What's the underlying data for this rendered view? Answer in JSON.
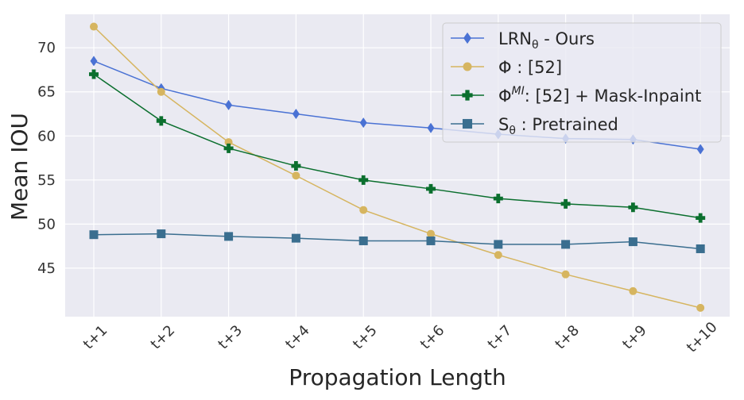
{
  "chart_data": {
    "type": "line",
    "xlabel": "Propagation Length",
    "ylabel": "Mean IOU",
    "categories": [
      "t+1",
      "t+2",
      "t+3",
      "t+4",
      "t+5",
      "t+6",
      "t+7",
      "t+8",
      "t+9",
      "t+10"
    ],
    "yticks": [
      45,
      50,
      55,
      60,
      65,
      70
    ],
    "ylim": [
      39.5,
      73.8
    ],
    "grid": true,
    "legend_position": "top-right",
    "series": [
      {
        "name": "LRN",
        "name_sub": "θ",
        "name_rest": " - Ours",
        "color": "#4a72d4",
        "marker": "diamond",
        "values": [
          68.5,
          65.4,
          63.5,
          62.5,
          61.5,
          60.9,
          60.2,
          59.7,
          59.6,
          58.5
        ]
      },
      {
        "name": "Φ : [52]",
        "color": "#d6b560",
        "marker": "circle",
        "values": [
          72.4,
          65.0,
          59.3,
          55.5,
          51.6,
          48.9,
          46.5,
          44.3,
          42.4,
          40.5
        ]
      },
      {
        "name": "Φ",
        "name_sup": "MI",
        "name_rest": ": [52] + Mask-Inpaint",
        "color": "#0b6f2e",
        "marker": "plus",
        "values": [
          67.0,
          61.7,
          58.6,
          56.6,
          55.0,
          54.0,
          52.9,
          52.3,
          51.9,
          50.7
        ]
      },
      {
        "name": "S",
        "name_sub": "θ",
        "name_rest": " : Pretrained",
        "color": "#3a6e8f",
        "marker": "square",
        "values": [
          48.8,
          48.9,
          48.6,
          48.4,
          48.1,
          48.1,
          47.7,
          47.7,
          48.0,
          47.2
        ]
      }
    ]
  }
}
